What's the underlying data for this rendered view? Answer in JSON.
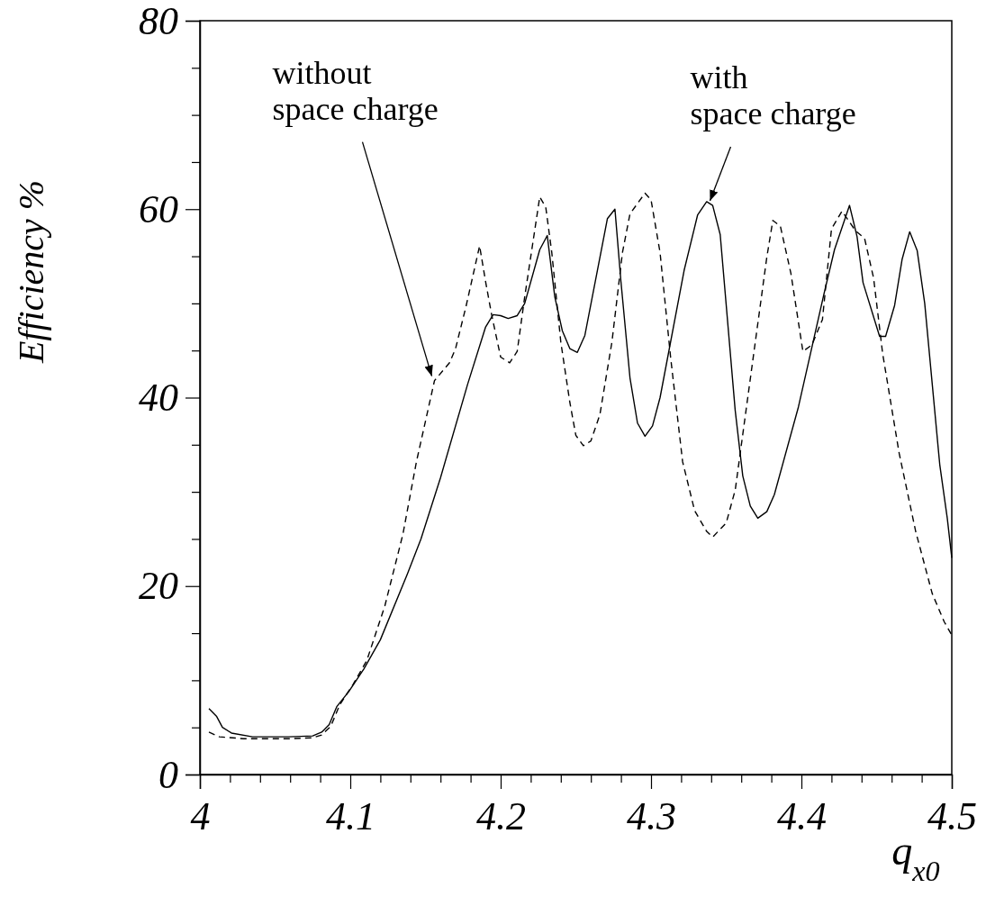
{
  "chart_data": {
    "type": "line",
    "xlabel": "q$_{x0}$",
    "ylabel": "Efficiency %",
    "xlim": [
      4,
      4.5
    ],
    "ylim": [
      0,
      80
    ],
    "xticks": [
      4,
      {
        "value": 4.02,
        "label": null
      },
      {
        "value": 4.04,
        "label": null
      },
      {
        "value": 4.06,
        "label": null
      },
      {
        "value": 4.08,
        "label": null
      },
      4.1,
      {
        "value": 4.12,
        "label": null
      },
      {
        "value": 4.14,
        "label": null
      },
      {
        "value": 4.16,
        "label": null
      },
      {
        "value": 4.18,
        "label": null
      },
      4.2,
      {
        "value": 4.22,
        "label": null
      },
      {
        "value": 4.24,
        "label": null
      },
      {
        "value": 4.26,
        "label": null
      },
      {
        "value": 4.28,
        "label": null
      },
      4.3,
      {
        "value": 4.32,
        "label": null
      },
      {
        "value": 4.34,
        "label": null
      },
      {
        "value": 4.36,
        "label": null
      },
      {
        "value": 4.38,
        "label": null
      },
      4.4,
      {
        "value": 4.42,
        "label": null
      },
      {
        "value": 4.44,
        "label": null
      },
      {
        "value": 4.46,
        "label": null
      },
      {
        "value": 4.48,
        "label": null
      },
      4.5
    ],
    "yticks": [
      0,
      {
        "value": 5,
        "label": null
      },
      {
        "value": 10,
        "label": null
      },
      {
        "value": 15,
        "label": null
      },
      20,
      {
        "value": 25,
        "label": null
      },
      {
        "value": 30,
        "label": null
      },
      {
        "value": 35,
        "label": null
      },
      40,
      {
        "value": 45,
        "label": null
      },
      {
        "value": 50,
        "label": null
      },
      {
        "value": 55,
        "label": null
      },
      60,
      {
        "value": 65,
        "label": null
      },
      {
        "value": 70,
        "label": null
      },
      {
        "value": 75,
        "label": null
      },
      80
    ],
    "series": [
      {
        "color": "#000000",
        "line_style": "solid",
        "x": [
          4.006,
          4.011,
          4.015,
          4.021,
          4.035,
          4.059,
          4.075,
          4.081,
          4.086,
          4.091,
          4.099,
          4.109,
          4.12,
          4.138,
          4.147,
          4.16,
          4.178,
          4.19,
          4.195,
          4.2,
          4.205,
          4.211,
          4.216,
          4.226,
          4.231,
          4.236,
          4.241,
          4.246,
          4.251,
          4.256,
          4.271,
          4.276,
          4.28,
          4.286,
          4.291,
          4.296,
          4.301,
          4.306,
          4.322,
          4.331,
          4.337,
          4.341,
          4.346,
          4.356,
          4.361,
          4.366,
          4.371,
          4.377,
          4.382,
          4.398,
          4.415,
          4.422,
          4.432,
          4.437,
          4.441,
          4.452,
          4.456,
          4.462,
          4.467,
          4.472,
          4.477,
          4.482,
          4.492,
          4.497,
          4.5
        ],
        "values": [
          7.0,
          6.2,
          5.0,
          4.4,
          4.0,
          4.0,
          4.1,
          4.5,
          5.3,
          7.2,
          8.8,
          11.2,
          14.3,
          21.3,
          25.0,
          31.5,
          41.4,
          47.5,
          48.8,
          48.7,
          48.4,
          48.7,
          50.0,
          55.7,
          57.2,
          50.7,
          47.1,
          45.2,
          44.8,
          46.6,
          59.0,
          60.0,
          52.3,
          42.1,
          37.3,
          35.9,
          37.0,
          40.0,
          53.5,
          59.4,
          60.8,
          60.4,
          57.3,
          38.6,
          31.7,
          28.5,
          27.2,
          27.9,
          29.7,
          39.0,
          51.0,
          55.7,
          60.4,
          57.1,
          52.2,
          46.5,
          46.5,
          49.8,
          54.7,
          57.6,
          55.6,
          50.0,
          32.9,
          27.2,
          23.0
        ]
      },
      {
        "color": "#000000",
        "line_style": "dashed",
        "x": [
          4.006,
          4.013,
          4.029,
          4.059,
          4.075,
          4.081,
          4.087,
          4.093,
          4.102,
          4.111,
          4.123,
          4.135,
          4.144,
          4.156,
          4.166,
          4.17,
          4.177,
          4.186,
          4.19,
          4.194,
          4.2,
          4.206,
          4.211,
          4.216,
          4.226,
          4.23,
          4.234,
          4.24,
          4.246,
          4.25,
          4.255,
          4.26,
          4.266,
          4.274,
          4.281,
          4.286,
          4.296,
          4.3,
          4.306,
          4.313,
          4.321,
          4.329,
          4.337,
          4.341,
          4.35,
          4.356,
          4.365,
          4.377,
          4.381,
          4.386,
          4.393,
          4.401,
          4.407,
          4.414,
          4.42,
          4.427,
          4.436,
          4.442,
          4.448,
          4.454,
          4.465,
          4.476,
          4.487,
          4.495,
          4.5
        ],
        "values": [
          4.5,
          4.0,
          3.8,
          3.8,
          3.9,
          4.2,
          5.1,
          7.4,
          9.6,
          12.1,
          17.9,
          25.5,
          33.2,
          41.8,
          43.7,
          45.2,
          49.7,
          56.1,
          52.3,
          48.8,
          44.3,
          43.7,
          44.9,
          50.7,
          61.3,
          60.2,
          55.4,
          45.9,
          39.5,
          36.0,
          34.9,
          35.4,
          38.2,
          45.9,
          55.4,
          59.5,
          61.7,
          61.0,
          55.4,
          44.3,
          33.2,
          28.0,
          25.8,
          25.2,
          26.7,
          30.2,
          40.8,
          54.9,
          58.8,
          58.2,
          53.2,
          44.9,
          45.6,
          48.3,
          57.9,
          59.8,
          57.7,
          56.9,
          52.7,
          44.7,
          34.1,
          25.8,
          19.2,
          16.2,
          14.8
        ]
      }
    ],
    "annotations": [
      {
        "text": "without\nspace charge",
        "x": 4.156,
        "y": 41.8
      },
      {
        "text": "with\nspace charge",
        "x": 4.341,
        "y": 60.4
      }
    ]
  }
}
